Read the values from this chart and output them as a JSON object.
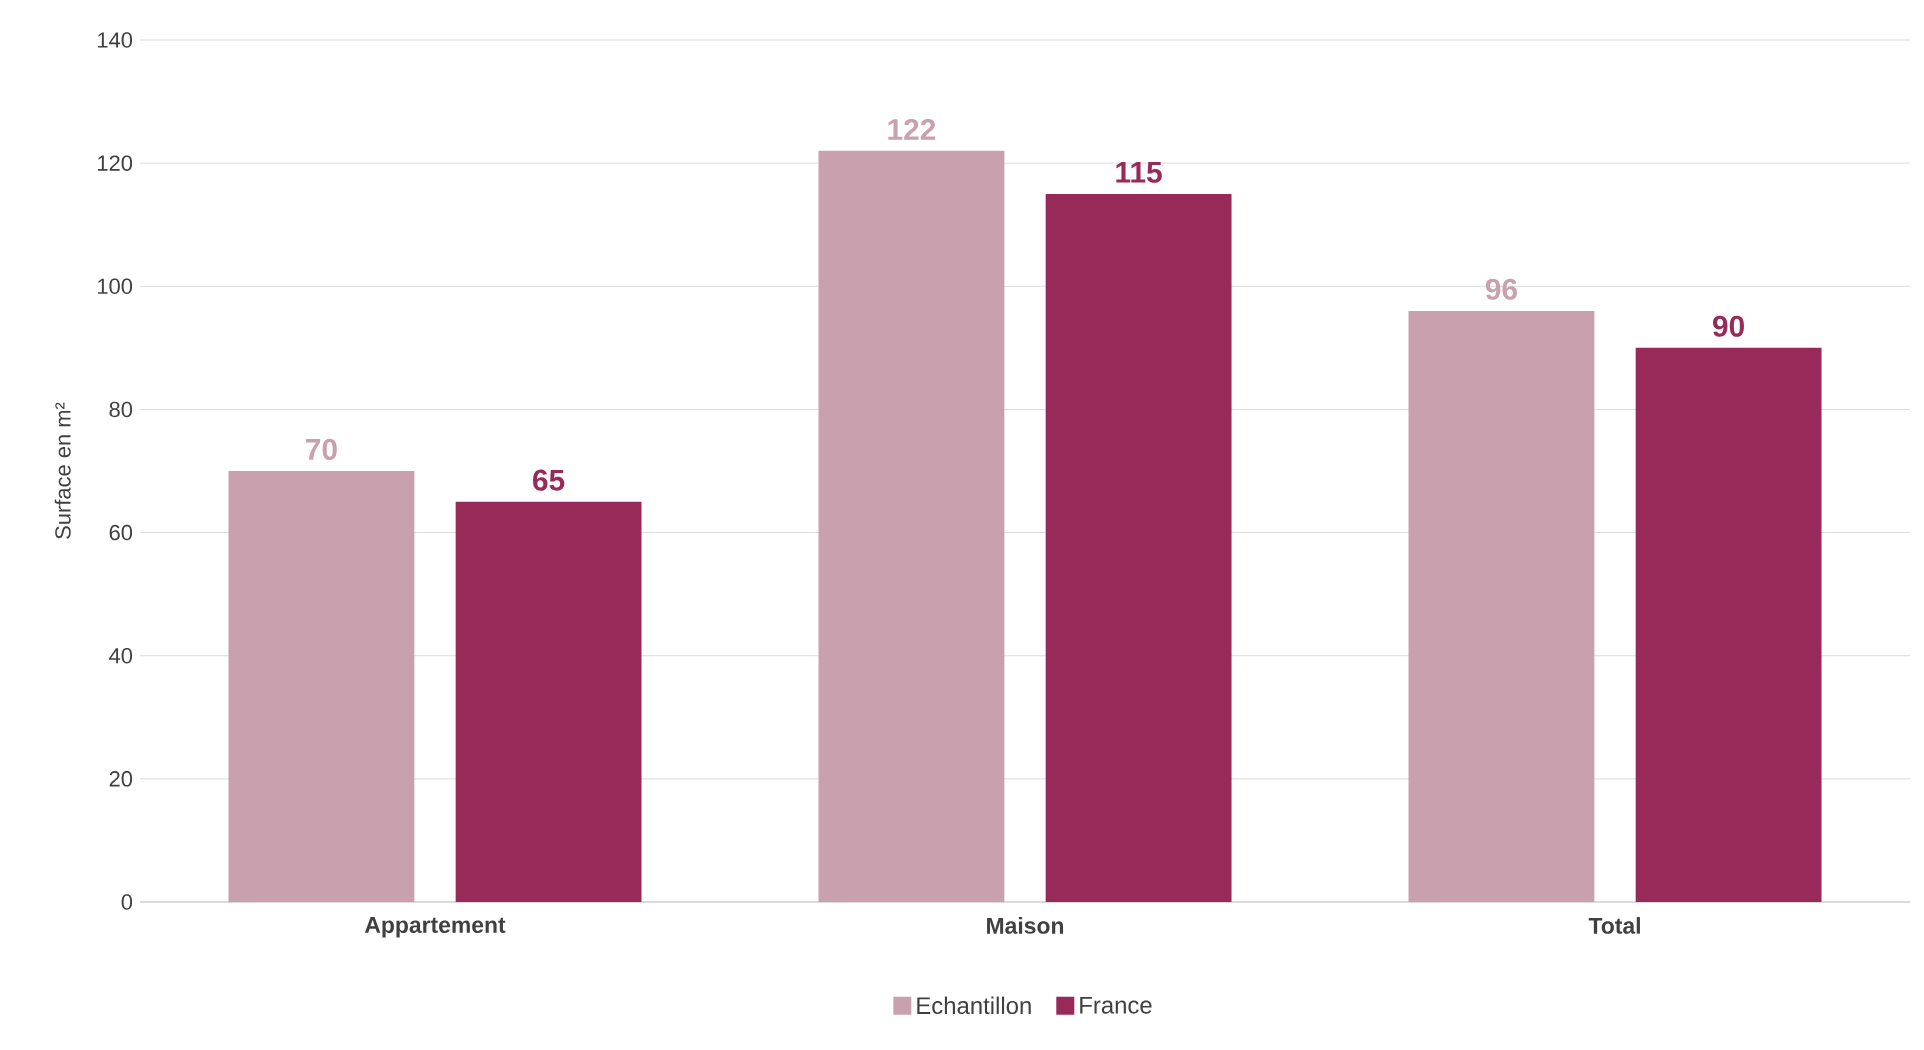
{
  "chart_data": {
    "type": "bar",
    "categories": [
      "Appartement",
      "Maison",
      "Total"
    ],
    "ylabel": "Surface en m²",
    "series": [
      {
        "name": "Echantillon",
        "color": "#c9a0ad",
        "values": [
          70,
          122,
          96
        ]
      },
      {
        "name": "France",
        "color": "#982a59",
        "values": [
          65,
          115,
          90
        ]
      }
    ],
    "ylim": [
      0,
      140
    ],
    "yticks": [
      0,
      20,
      40,
      60,
      80,
      100,
      120,
      140
    ],
    "grid": "y",
    "legend": "bottom",
    "data_labels": true
  }
}
